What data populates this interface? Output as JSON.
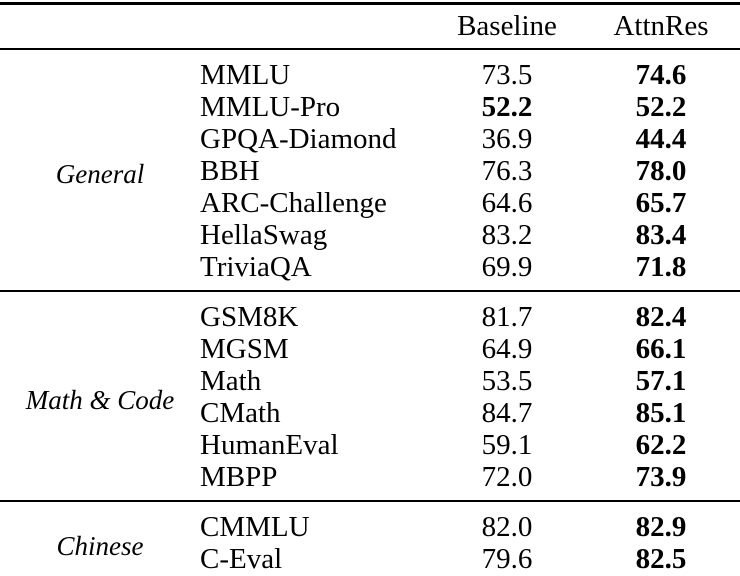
{
  "colors": {
    "text": "#000000",
    "background": "#ffffff",
    "rule": "#000000"
  },
  "table": {
    "header": {
      "baseline": "Baseline",
      "attnres": "AttnRes"
    },
    "groups": [
      {
        "label": "General",
        "rows": [
          {
            "name": "MMLU",
            "baseline": "73.5",
            "baseline_bold": false,
            "attnres": "74.6",
            "attnres_bold": true
          },
          {
            "name": "MMLU-Pro",
            "baseline": "52.2",
            "baseline_bold": true,
            "attnres": "52.2",
            "attnres_bold": true
          },
          {
            "name": "GPQA-Diamond",
            "baseline": "36.9",
            "baseline_bold": false,
            "attnres": "44.4",
            "attnres_bold": true
          },
          {
            "name": "BBH",
            "baseline": "76.3",
            "baseline_bold": false,
            "attnres": "78.0",
            "attnres_bold": true
          },
          {
            "name": "ARC-Challenge",
            "baseline": "64.6",
            "baseline_bold": false,
            "attnres": "65.7",
            "attnres_bold": true
          },
          {
            "name": "HellaSwag",
            "baseline": "83.2",
            "baseline_bold": false,
            "attnres": "83.4",
            "attnres_bold": true
          },
          {
            "name": "TriviaQA",
            "baseline": "69.9",
            "baseline_bold": false,
            "attnres": "71.8",
            "attnres_bold": true
          }
        ]
      },
      {
        "label": "Math & Code",
        "rows": [
          {
            "name": "GSM8K",
            "baseline": "81.7",
            "baseline_bold": false,
            "attnres": "82.4",
            "attnres_bold": true
          },
          {
            "name": "MGSM",
            "baseline": "64.9",
            "baseline_bold": false,
            "attnres": "66.1",
            "attnres_bold": true
          },
          {
            "name": "Math",
            "baseline": "53.5",
            "baseline_bold": false,
            "attnres": "57.1",
            "attnres_bold": true
          },
          {
            "name": "CMath",
            "baseline": "84.7",
            "baseline_bold": false,
            "attnres": "85.1",
            "attnres_bold": true
          },
          {
            "name": "HumanEval",
            "baseline": "59.1",
            "baseline_bold": false,
            "attnres": "62.2",
            "attnres_bold": true
          },
          {
            "name": "MBPP",
            "baseline": "72.0",
            "baseline_bold": false,
            "attnres": "73.9",
            "attnres_bold": true
          }
        ]
      },
      {
        "label": "Chinese",
        "rows": [
          {
            "name": "CMMLU",
            "baseline": "82.0",
            "baseline_bold": false,
            "attnres": "82.9",
            "attnres_bold": true
          },
          {
            "name": "C-Eval",
            "baseline": "79.6",
            "baseline_bold": false,
            "attnres": "82.5",
            "attnres_bold": true
          }
        ]
      }
    ]
  }
}
